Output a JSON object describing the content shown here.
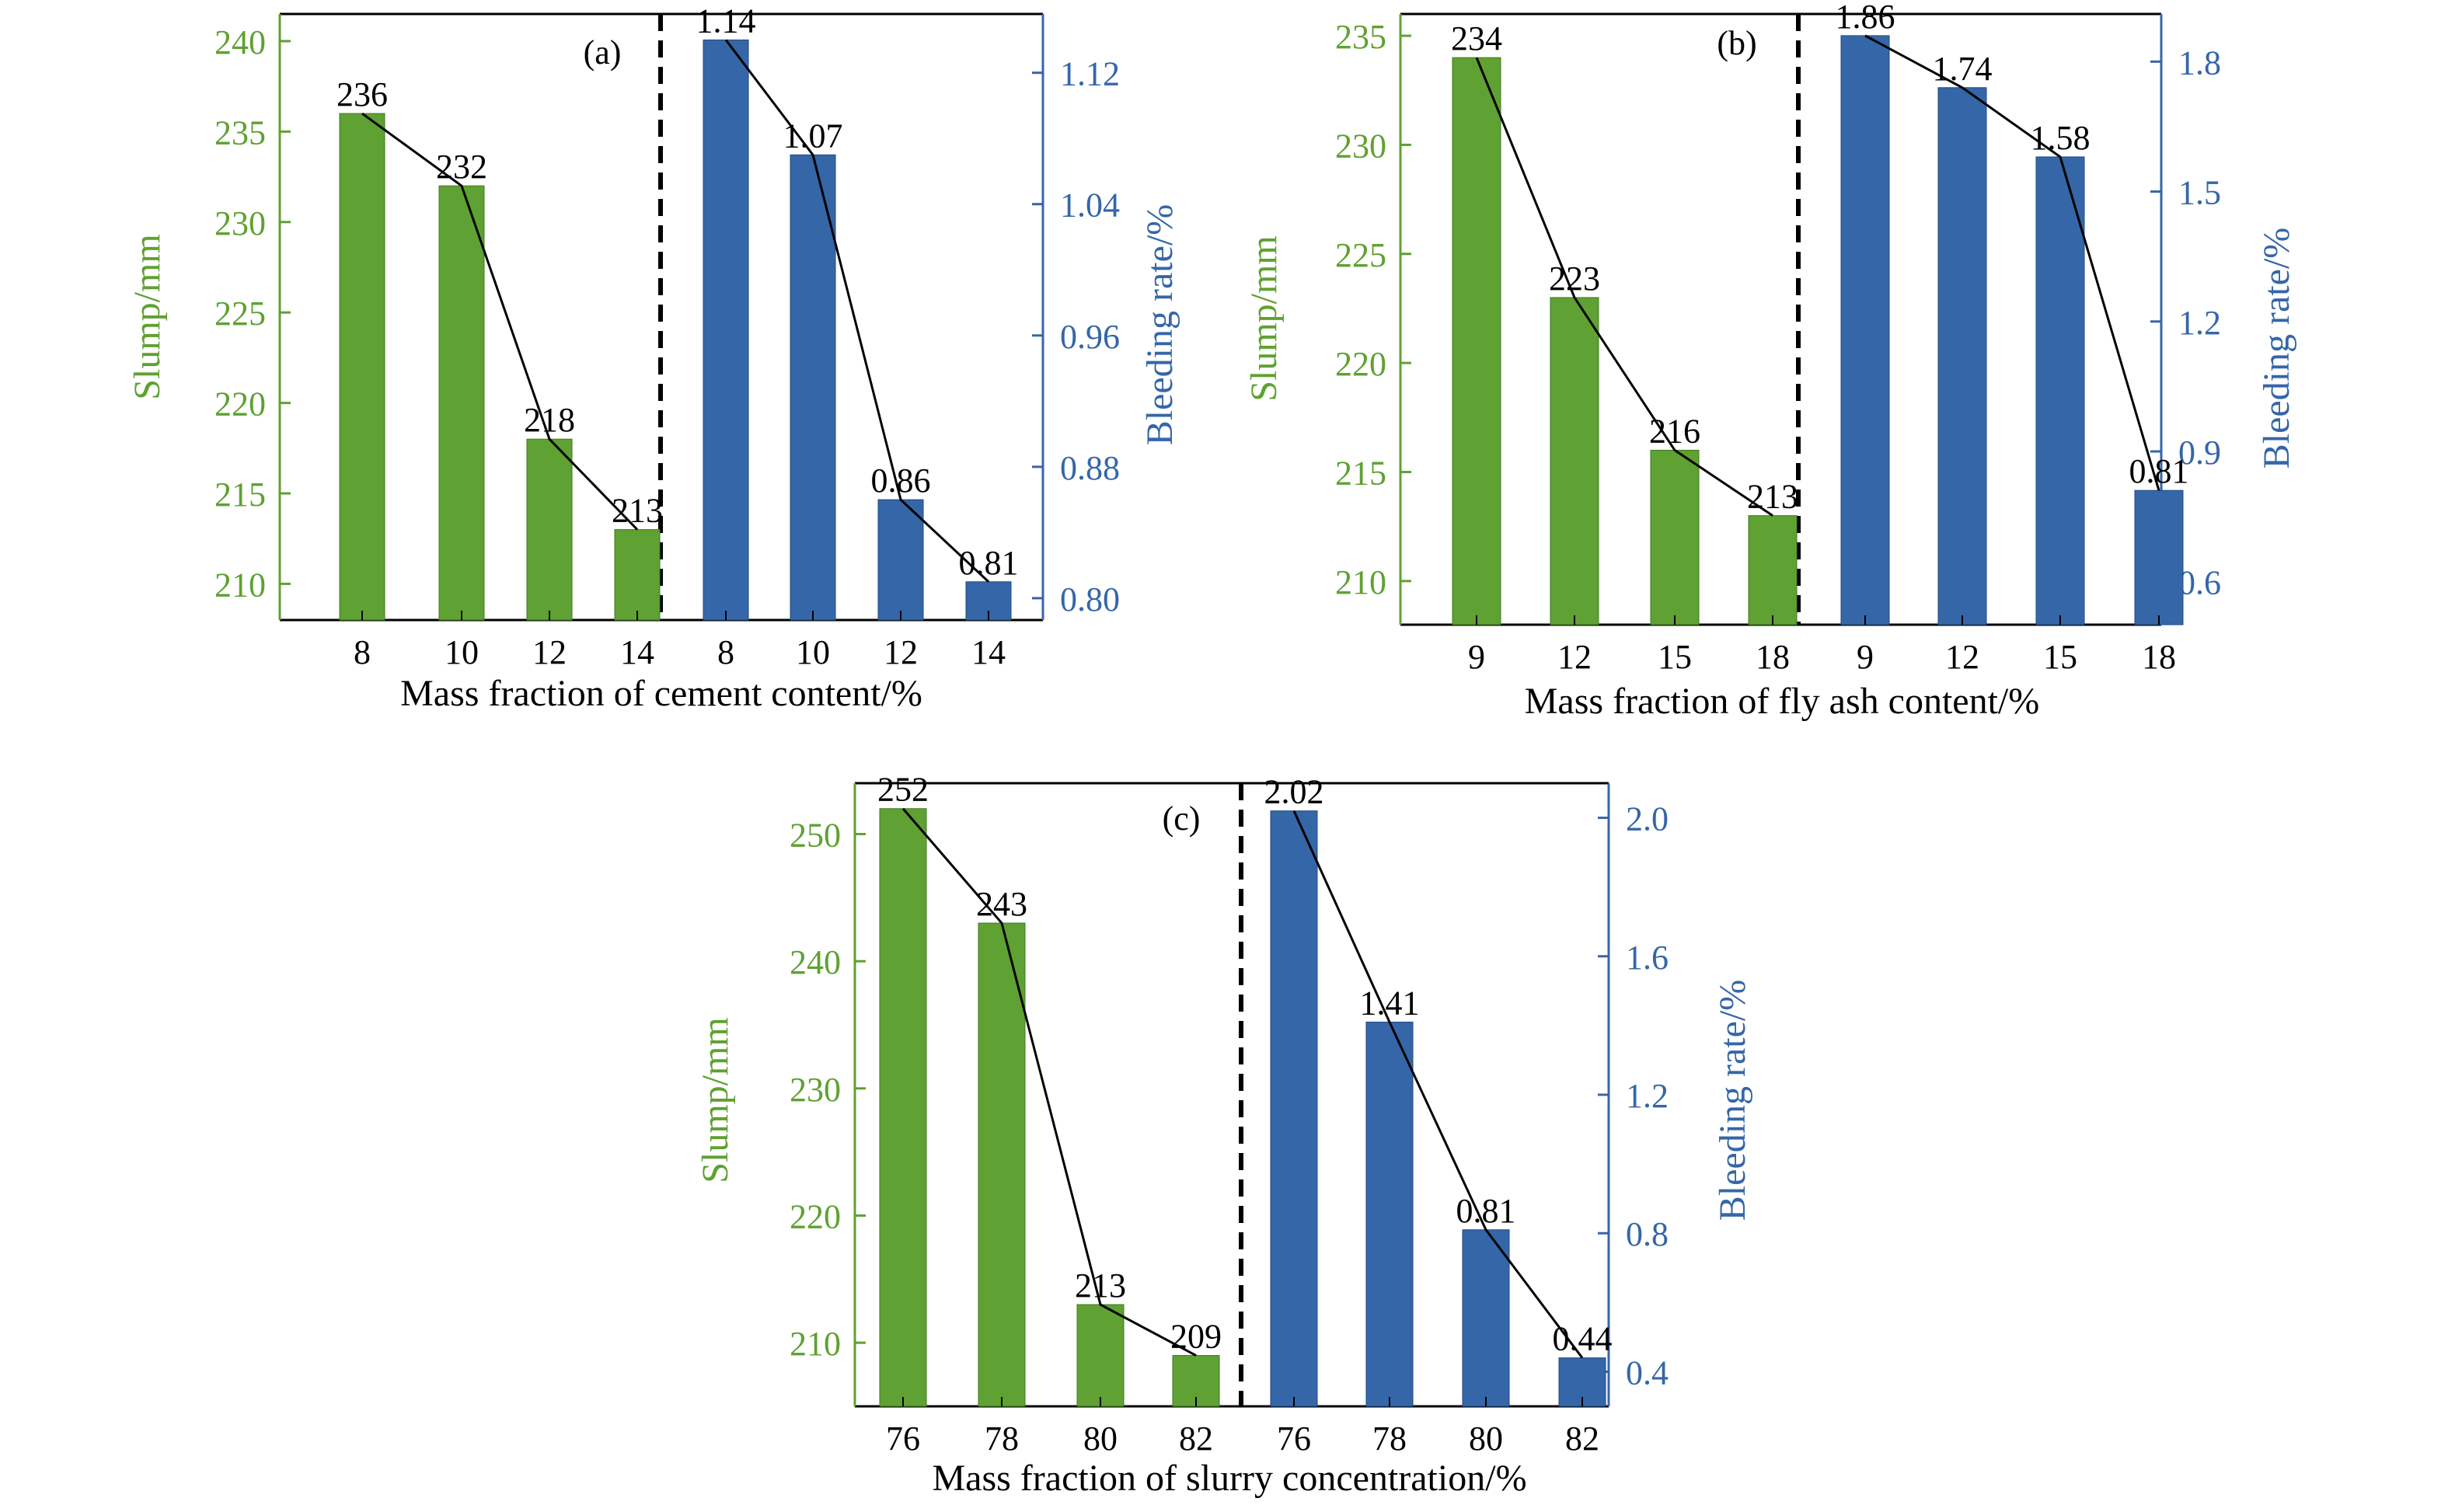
{
  "colors": {
    "slump": "#5fa132",
    "bleeding": "#3566a8",
    "frame": "#000000",
    "line": "#000000"
  },
  "chart_data": [
    {
      "type": "bar",
      "panel_label": "(a)",
      "xlabel": "Mass fraction of cement content/%",
      "left_ylabel": "Slump/mm",
      "right_ylabel": "Bleeding rate/%",
      "left_ylim": [
        208,
        241.5
      ],
      "left_ticks": [
        "210",
        "215",
        "220",
        "225",
        "230",
        "235",
        "240"
      ],
      "right_ylim": [
        0.7867,
        1.1558
      ],
      "right_ticks": [
        "0.80",
        "0.88",
        "0.96",
        "1.04",
        "1.12"
      ],
      "categories": [
        "8",
        "10",
        "12",
        "14"
      ],
      "slump": {
        "values": [
          236,
          232,
          218,
          213
        ],
        "labels": [
          "236",
          "232",
          "218",
          "213"
        ]
      },
      "bleeding": {
        "values": [
          1.14,
          1.07,
          0.86,
          0.81
        ],
        "labels": [
          "1.14",
          "1.07",
          "0.86",
          "0.81"
        ]
      },
      "trend_lines": true,
      "separator": "dashed"
    },
    {
      "type": "bar",
      "panel_label": "(b)",
      "xlabel": "Mass fraction of fly ash content/%",
      "left_ylabel": "Slump/mm",
      "right_ylabel": "Bleeding rate/%",
      "left_ylim": [
        208,
        236
      ],
      "left_ticks": [
        "210",
        "215",
        "220",
        "225",
        "230",
        "235"
      ],
      "right_ylim": [
        0.5,
        1.91
      ],
      "right_ticks": [
        "0.6",
        "0.9",
        "1.2",
        "1.5",
        "1.8"
      ],
      "categories": [
        "9",
        "12",
        "15",
        "18"
      ],
      "slump": {
        "values": [
          234,
          223,
          216,
          213
        ],
        "labels": [
          "234",
          "223",
          "216",
          "213"
        ]
      },
      "bleeding": {
        "values": [
          1.86,
          1.74,
          1.58,
          0.81
        ],
        "labels": [
          "1.86",
          "1.74",
          "1.58",
          "0.81"
        ]
      },
      "trend_lines": true,
      "separator": "dashed"
    },
    {
      "type": "bar",
      "panel_label": "(c)",
      "xlabel": "Mass fraction of slurry concentration/%",
      "left_ylabel": "Slump/mm",
      "right_ylabel": "Bleeding rate/%",
      "left_ylim": [
        205,
        254
      ],
      "left_ticks": [
        "210",
        "220",
        "230",
        "240",
        "250"
      ],
      "right_ylim": [
        0.3,
        2.1
      ],
      "right_ticks": [
        "0.4",
        "0.8",
        "1.2",
        "1.6",
        "2.0"
      ],
      "categories": [
        "76",
        "78",
        "80",
        "82"
      ],
      "slump": {
        "values": [
          252,
          243,
          213,
          209
        ],
        "labels": [
          "252",
          "243",
          "213",
          "209"
        ]
      },
      "bleeding": {
        "values": [
          2.02,
          1.41,
          0.81,
          0.44
        ],
        "labels": [
          "2.02",
          "1.41",
          "0.81",
          "0.44"
        ]
      },
      "trend_lines": true,
      "separator": "dashed"
    }
  ]
}
